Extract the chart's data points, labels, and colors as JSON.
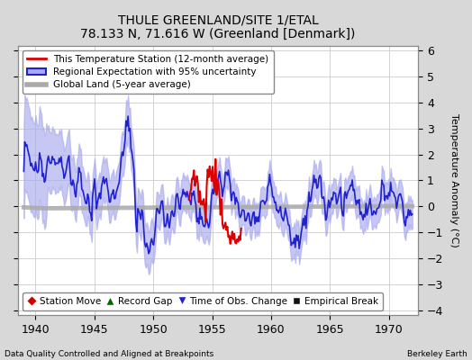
{
  "title": "THULE GREENLAND/SITE 1/ETAL",
  "subtitle": "78.133 N, 71.616 W (Greenland [Denmark])",
  "xlabel_left": "Data Quality Controlled and Aligned at Breakpoints",
  "xlabel_right": "Berkeley Earth",
  "ylabel": "Temperature Anomaly (°C)",
  "xlim": [
    1938.5,
    1972.5
  ],
  "ylim": [
    -4.2,
    6.2
  ],
  "yticks": [
    -4,
    -3,
    -2,
    -1,
    0,
    1,
    2,
    3,
    4,
    5,
    6
  ],
  "xticks": [
    1940,
    1945,
    1950,
    1955,
    1960,
    1965,
    1970
  ],
  "bg_color": "#d8d8d8",
  "plot_bg_color": "#ffffff",
  "legend1_entries": [
    {
      "label": "This Temperature Station (12-month average)",
      "color": "#dd0000"
    },
    {
      "label": "Regional Expectation with 95% uncertainty",
      "color": "#2222cc"
    },
    {
      "label": "Global Land (5-year average)",
      "color": "#aaaaaa"
    }
  ],
  "legend2_entries": [
    {
      "label": "Station Move",
      "marker": "D",
      "color": "#cc0000"
    },
    {
      "label": "Record Gap",
      "marker": "^",
      "color": "#006600"
    },
    {
      "label": "Time of Obs. Change",
      "marker": "v",
      "color": "#2222cc"
    },
    {
      "label": "Empirical Break",
      "marker": "s",
      "color": "#111111"
    }
  ],
  "uncertainty_color": "#aaaaee",
  "station_color": "#dd0000",
  "regional_color": "#2222cc",
  "global_color": "#aaaaaa"
}
